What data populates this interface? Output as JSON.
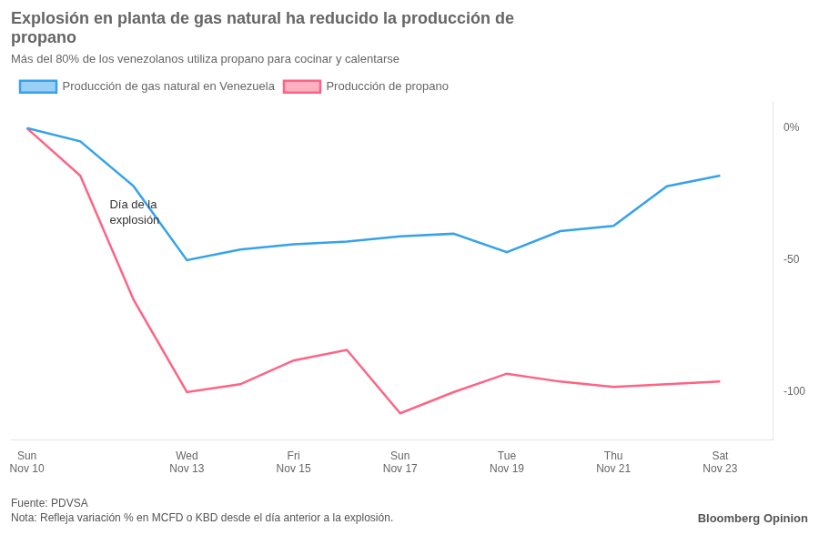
{
  "chart_data": {
    "type": "line",
    "title": "Explosión en planta de gas natural ha reducido la producción de\npropano",
    "subtitle": "Más del 80% de los venezolanos utiliza propano para cocinar y calentarse",
    "x": [
      0,
      1,
      2,
      3,
      4,
      5,
      6,
      7,
      8,
      9,
      10,
      11,
      12,
      13
    ],
    "series": [
      {
        "name": "Producción de gas natural en Venezuela",
        "values": [
          0,
          -5,
          -22,
          -50,
          -46,
          -44,
          -43,
          -41,
          -40,
          -47,
          -39,
          -37,
          -22,
          -18
        ]
      },
      {
        "name": "Producción de propano",
        "values": [
          0,
          -18,
          -65,
          -100,
          -97,
          -88,
          -84,
          -108,
          -100,
          -93,
          -96,
          -98,
          -97,
          -96
        ]
      }
    ],
    "xlim": [
      -0.3,
      14.0
    ],
    "xticks": [
      {
        "value": 0,
        "label": "Sun\nNov 10"
      },
      {
        "value": 3,
        "label": "Wed\nNov 13"
      },
      {
        "value": 5,
        "label": "Fri\nNov 15"
      },
      {
        "value": 7,
        "label": "Sun\nNov 17"
      },
      {
        "value": 9,
        "label": "Tue\nNov 19"
      },
      {
        "value": 11,
        "label": "Thu\nNov 21"
      },
      {
        "value": 13,
        "label": "Sat\nNov 23"
      }
    ],
    "ylim": [
      -118,
      10
    ],
    "yticks": [
      {
        "value": 0,
        "label": "0%"
      },
      -50,
      -100
    ],
    "grid": false,
    "legend": "upper left",
    "annotations": [
      {
        "text": "Día de la\nexplosión",
        "x": 1.55,
        "y": -27
      }
    ],
    "footnotes": [
      "Fuente: PDVSA",
      "Nota: Refleja variación % en MCFD o KBD desde el día anterior a la explosión."
    ],
    "credit": "Bloomberg Opinion"
  }
}
